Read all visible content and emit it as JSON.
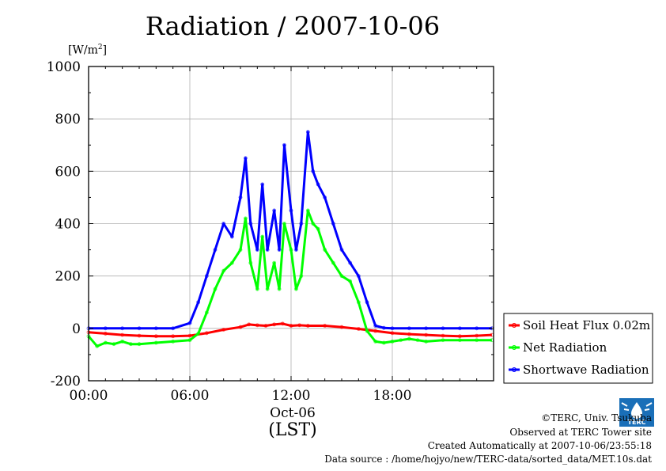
{
  "chart_data": {
    "type": "line",
    "title": "Radiation / 2007-10-06",
    "ylabel": "[W/m",
    "ylabel_sup": "2",
    "ylabel_close": "]",
    "ylim": [
      -200,
      1000
    ],
    "xlim": [
      0,
      24
    ],
    "yticks": [
      -200,
      0,
      200,
      400,
      600,
      800,
      1000
    ],
    "ytick_labels": [
      "-200",
      "0",
      "200",
      "400",
      "600",
      "800",
      "1000"
    ],
    "xticks": [
      0,
      6,
      12,
      18
    ],
    "xtick_labels": [
      "00:00",
      "06:00",
      "12:00",
      "18:00"
    ],
    "xlabel_date": "Oct-06",
    "xlabel": "(LST)",
    "grid": true,
    "legend_position": "right-bottom",
    "series": [
      {
        "name": "Soil Heat Flux 0.02m",
        "color": "#ff0000",
        "x": [
          0,
          1,
          2,
          3,
          4,
          5,
          6,
          7,
          8,
          9,
          9.5,
          10,
          10.5,
          11,
          11.5,
          12,
          12.5,
          13,
          14,
          15,
          16,
          17,
          18,
          19,
          20,
          21,
          22,
          23,
          23.9
        ],
        "y": [
          -15,
          -20,
          -25,
          -28,
          -30,
          -30,
          -28,
          -18,
          -5,
          5,
          15,
          12,
          10,
          15,
          18,
          10,
          12,
          10,
          10,
          5,
          -2,
          -10,
          -18,
          -22,
          -25,
          -28,
          -30,
          -28,
          -25
        ]
      },
      {
        "name": "Net Radiation",
        "color": "#00ff00",
        "x": [
          0,
          0.5,
          1,
          1.5,
          2,
          2.5,
          3,
          4,
          5,
          6,
          6.5,
          7,
          7.5,
          8,
          8.5,
          9,
          9.3,
          9.6,
          10,
          10.3,
          10.6,
          11,
          11.3,
          11.6,
          12,
          12.3,
          12.6,
          13,
          13.3,
          13.6,
          14,
          14.5,
          15,
          15.5,
          16,
          16.5,
          17,
          17.5,
          18,
          18.5,
          19,
          19.5,
          20,
          21,
          22,
          23,
          23.9
        ],
        "y": [
          -30,
          -68,
          -55,
          -60,
          -50,
          -60,
          -60,
          -55,
          -50,
          -45,
          -20,
          60,
          150,
          220,
          250,
          300,
          420,
          250,
          150,
          350,
          150,
          250,
          150,
          400,
          300,
          150,
          200,
          450,
          400,
          380,
          300,
          250,
          200,
          180,
          100,
          -10,
          -50,
          -55,
          -50,
          -45,
          -40,
          -45,
          -50,
          -45,
          -45,
          -45,
          -45
        ]
      },
      {
        "name": "Shortwave Radiation",
        "color": "#0000ff",
        "x": [
          0,
          1,
          2,
          3,
          4,
          5,
          6,
          6.5,
          7,
          7.5,
          8,
          8.5,
          9,
          9.3,
          9.6,
          10,
          10.3,
          10.6,
          11,
          11.3,
          11.6,
          12,
          12.3,
          12.6,
          13,
          13.3,
          13.6,
          14,
          14.5,
          15,
          15.5,
          16,
          16.5,
          17,
          17.5,
          18,
          19,
          20,
          21,
          22,
          23,
          23.9
        ],
        "y": [
          0,
          0,
          0,
          0,
          0,
          0,
          20,
          100,
          200,
          300,
          400,
          350,
          500,
          650,
          400,
          300,
          550,
          300,
          450,
          300,
          700,
          450,
          300,
          400,
          750,
          600,
          550,
          500,
          400,
          300,
          250,
          200,
          100,
          10,
          2,
          0,
          0,
          0,
          0,
          0,
          0,
          0
        ]
      }
    ]
  },
  "footer": {
    "copyright": "©TERC, Univ. Tsukuba",
    "observed": "Observed at TERC Tower site",
    "created": "Created Automatically at 2007-10-06/23:55:18",
    "source": "Data source : /home/hojyo/new/TERC-data/sorted_data/MET.10s.dat"
  },
  "logo_text": "TERC"
}
